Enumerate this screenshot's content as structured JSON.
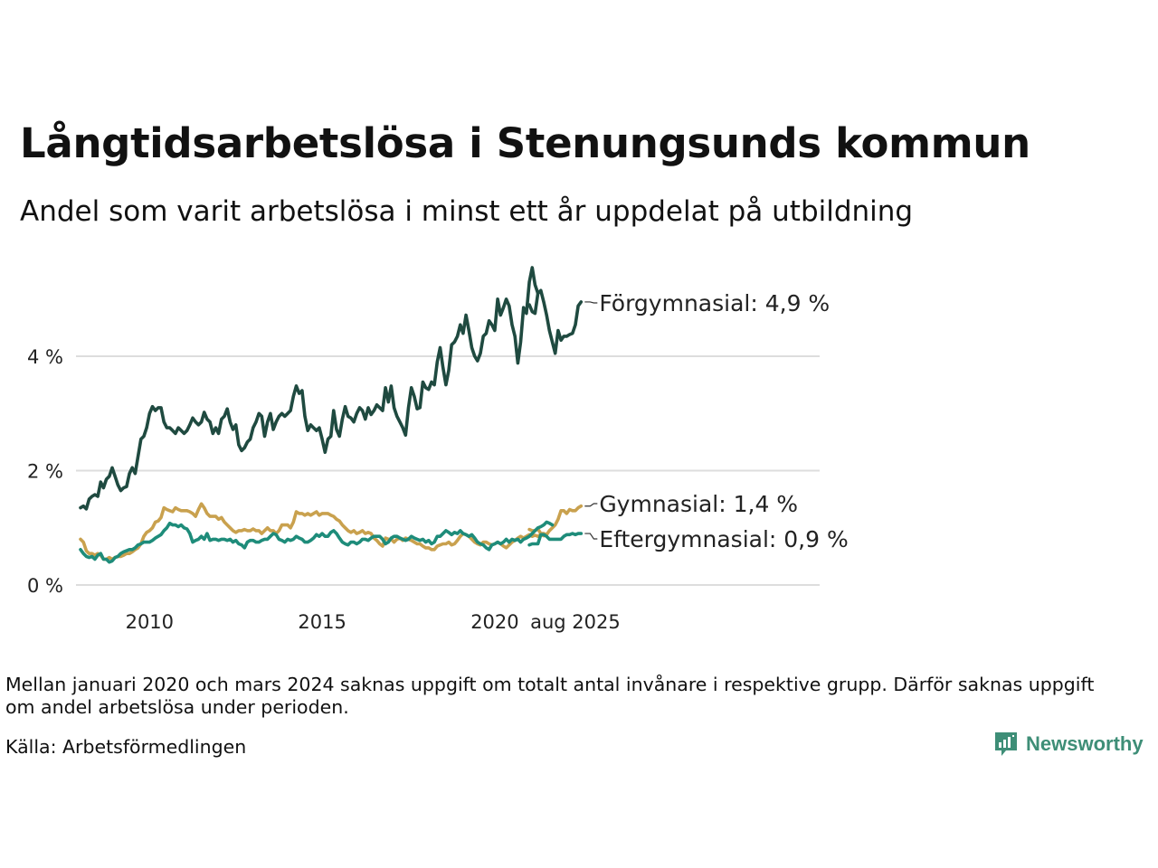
{
  "header": {
    "title": "Långtidsarbetslösa i Stenungsunds kommun",
    "subtitle": "Andel som varit arbetslösa i minst ett år uppdelat på utbildning"
  },
  "footer": {
    "note": "Mellan januari 2020 och mars 2024 saknas uppgift om totalt antal invånare i respektive grupp. Därför saknas uppgift om andel arbetslösa under perioden.",
    "source": "Källa: Arbetsförmedlingen",
    "brand": "Newsworthy"
  },
  "colors": {
    "forgymnasial": "#1f4a40",
    "gymnasial": "#c9a14e",
    "eftergymnasial": "#1e8c7a",
    "grid": "#dddddd",
    "brand": "#3e8e77"
  },
  "chart_data": {
    "type": "line",
    "title": "Långtidsarbetslösa i Stenungsunds kommun",
    "subtitle": "Andel som varit arbetslösa i minst ett år uppdelat på utbildning",
    "ylim": [
      0,
      6
    ],
    "y_ticks": [
      0,
      2,
      4
    ],
    "y_tick_labels": [
      "0 %",
      "2 %",
      "4 %"
    ],
    "x_tick_labels": [
      "2010",
      "2015",
      "2020",
      "aug 2025"
    ],
    "grid": "horizontal",
    "legend": "end-labels-right",
    "series": [
      {
        "name": "Förgymnasial",
        "end_label": "Förgymnasial: 4,9 %",
        "color": "#1f4a40",
        "segments": [
          {
            "start": "2008-01",
            "values": [
              1.35,
              1.38,
              1.33,
              1.5,
              1.55,
              1.58,
              1.55,
              1.8,
              1.7,
              1.85,
              1.9,
              2.05,
              1.9,
              1.75,
              1.65,
              1.7,
              1.72,
              1.95,
              2.05,
              1.95,
              2.25,
              2.55,
              2.6,
              2.75,
              3.0,
              3.12,
              3.05,
              3.1,
              3.1,
              2.85,
              2.75,
              2.75,
              2.7,
              2.65,
              2.75,
              2.7,
              2.65,
              2.7,
              2.8,
              2.92,
              2.85,
              2.8,
              2.85,
              3.02,
              2.9,
              2.85,
              2.65,
              2.75,
              2.65,
              2.9,
              2.95,
              3.08,
              2.85,
              2.72,
              2.8,
              2.45,
              2.35,
              2.4,
              2.5,
              2.55,
              2.75,
              2.85,
              3.0,
              2.95,
              2.6,
              2.85,
              3.0,
              2.72,
              2.85,
              2.95,
              3.0,
              2.95,
              3.0,
              3.05,
              3.3,
              3.48,
              3.35,
              3.4,
              2.95,
              2.7,
              2.8,
              2.75,
              2.7,
              2.75,
              2.55,
              2.32,
              2.55,
              2.6,
              3.05,
              2.72,
              2.6,
              2.9,
              3.12,
              2.95,
              2.92,
              2.85,
              3.0,
              3.1,
              3.05,
              2.9,
              3.1,
              2.98,
              3.05,
              3.15,
              3.1,
              3.05,
              3.45,
              3.2,
              3.48,
              3.1,
              2.95,
              2.85,
              2.75,
              2.62,
              3.1,
              3.45,
              3.3,
              3.08,
              3.1,
              3.55,
              3.45,
              3.42,
              3.55,
              3.5,
              3.9,
              4.15,
              3.8,
              3.5,
              3.75,
              4.2,
              4.25,
              4.35,
              4.55,
              4.4,
              4.72,
              4.45,
              4.15,
              4.0,
              3.92,
              4.05,
              4.35,
              4.4,
              4.62,
              4.55,
              4.45,
              5.0,
              4.72,
              4.85,
              5.0,
              4.88,
              4.55,
              4.35,
              3.88,
              4.25,
              4.85,
              4.75,
              5.3,
              5.55,
              5.25,
              5.1
            ]
          },
          {
            "start": "2024-04",
            "values": [
              4.9,
              4.78,
              4.75,
              5.1,
              5.15,
              4.95,
              4.72,
              4.45,
              4.25,
              4.05,
              4.45,
              4.28,
              4.35,
              4.35,
              4.38,
              4.4,
              4.55,
              4.88,
              4.95
            ]
          }
        ]
      },
      {
        "name": "Gymnasial",
        "end_label": "Gymnasial: 1,4 %",
        "color": "#c9a14e",
        "segments": [
          {
            "start": "2008-01",
            "values": [
              0.8,
              0.75,
              0.6,
              0.55,
              0.55,
              0.52,
              0.55,
              0.52,
              0.45,
              0.45,
              0.48,
              0.45,
              0.48,
              0.5,
              0.5,
              0.52,
              0.55,
              0.55,
              0.58,
              0.62,
              0.65,
              0.72,
              0.85,
              0.92,
              0.95,
              1.0,
              1.1,
              1.12,
              1.18,
              1.35,
              1.32,
              1.3,
              1.28,
              1.35,
              1.32,
              1.3,
              1.3,
              1.3,
              1.28,
              1.25,
              1.2,
              1.32,
              1.42,
              1.35,
              1.25,
              1.2,
              1.2,
              1.2,
              1.15,
              1.18,
              1.1,
              1.05,
              1.0,
              0.95,
              0.92,
              0.95,
              0.95,
              0.97,
              0.95,
              0.95,
              0.98,
              0.95,
              0.95,
              0.9,
              0.95,
              1.0,
              0.95,
              0.95,
              0.9,
              0.95,
              1.05,
              1.05,
              1.05,
              1.0,
              1.1,
              1.28,
              1.25,
              1.25,
              1.22,
              1.25,
              1.22,
              1.25,
              1.28,
              1.22,
              1.25,
              1.25,
              1.25,
              1.22,
              1.2,
              1.15,
              1.12,
              1.05,
              1.0,
              0.95,
              0.92,
              0.95,
              0.9,
              0.92,
              0.95,
              0.9,
              0.92,
              0.9,
              0.82,
              0.78,
              0.72,
              0.68,
              0.82,
              0.8,
              0.8,
              0.75,
              0.8,
              0.82,
              0.78,
              0.82,
              0.8,
              0.78,
              0.75,
              0.72,
              0.72,
              0.68,
              0.65,
              0.65,
              0.62,
              0.62,
              0.68,
              0.7,
              0.72,
              0.72,
              0.75,
              0.7,
              0.72,
              0.78,
              0.85,
              0.9,
              0.88,
              0.85,
              0.8,
              0.75,
              0.72,
              0.7,
              0.75,
              0.75,
              0.72,
              0.7,
              0.72,
              0.75,
              0.72,
              0.68,
              0.65,
              0.7,
              0.75,
              0.78,
              0.82,
              0.85,
              0.82,
              0.85,
              0.88,
              0.85,
              0.87,
              0.85,
              0.88,
              0.86
            ]
          },
          {
            "start": "2024-04",
            "values": [
              0.97,
              0.95,
              0.95,
              0.98,
              0.9,
              0.9,
              0.88,
              0.95,
              1.0,
              1.05,
              1.15,
              1.3,
              1.3,
              1.25,
              1.32,
              1.3,
              1.3,
              1.35,
              1.38
            ]
          }
        ]
      },
      {
        "name": "Eftergymnasial",
        "end_label": "Eftergymnasial: 0,9 %",
        "color": "#1e8c7a",
        "segments": [
          {
            "start": "2008-01",
            "values": [
              0.62,
              0.55,
              0.5,
              0.48,
              0.5,
              0.45,
              0.52,
              0.55,
              0.45,
              0.45,
              0.4,
              0.42,
              0.48,
              0.5,
              0.55,
              0.58,
              0.6,
              0.62,
              0.62,
              0.65,
              0.7,
              0.72,
              0.75,
              0.75,
              0.75,
              0.78,
              0.82,
              0.85,
              0.88,
              0.95,
              1.0,
              1.08,
              1.05,
              1.05,
              1.02,
              1.05,
              1.0,
              0.98,
              0.9,
              0.75,
              0.78,
              0.8,
              0.85,
              0.8,
              0.9,
              0.78,
              0.8,
              0.8,
              0.78,
              0.8,
              0.8,
              0.78,
              0.8,
              0.75,
              0.78,
              0.72,
              0.7,
              0.65,
              0.75,
              0.78,
              0.78,
              0.75,
              0.75,
              0.78,
              0.8,
              0.8,
              0.85,
              0.9,
              0.88,
              0.8,
              0.78,
              0.75,
              0.8,
              0.78,
              0.8,
              0.85,
              0.82,
              0.8,
              0.75,
              0.75,
              0.78,
              0.82,
              0.88,
              0.85,
              0.9,
              0.85,
              0.85,
              0.92,
              0.95,
              0.9,
              0.82,
              0.75,
              0.72,
              0.7,
              0.75,
              0.75,
              0.72,
              0.75,
              0.8,
              0.8,
              0.78,
              0.82,
              0.85,
              0.85,
              0.85,
              0.8,
              0.72,
              0.75,
              0.82,
              0.85,
              0.85,
              0.82,
              0.8,
              0.78,
              0.8,
              0.85,
              0.82,
              0.8,
              0.78,
              0.8,
              0.75,
              0.78,
              0.72,
              0.75,
              0.85,
              0.85,
              0.9,
              0.95,
              0.92,
              0.88,
              0.92,
              0.9,
              0.95,
              0.9,
              0.88,
              0.85,
              0.88,
              0.82,
              0.75,
              0.72,
              0.7,
              0.65,
              0.62,
              0.7,
              0.72,
              0.75,
              0.72,
              0.75,
              0.8,
              0.75,
              0.8,
              0.78,
              0.8,
              0.75,
              0.8,
              0.82,
              0.85,
              0.9,
              0.95,
              1.0,
              1.02,
              1.05,
              1.1,
              1.08,
              1.05
            ]
          },
          {
            "start": "2024-04",
            "values": [
              0.7,
              0.72,
              0.72,
              0.72,
              0.88,
              0.88,
              0.85,
              0.8,
              0.8,
              0.8,
              0.8,
              0.8,
              0.85,
              0.88,
              0.88,
              0.9,
              0.88,
              0.9,
              0.9
            ]
          }
        ]
      }
    ]
  }
}
